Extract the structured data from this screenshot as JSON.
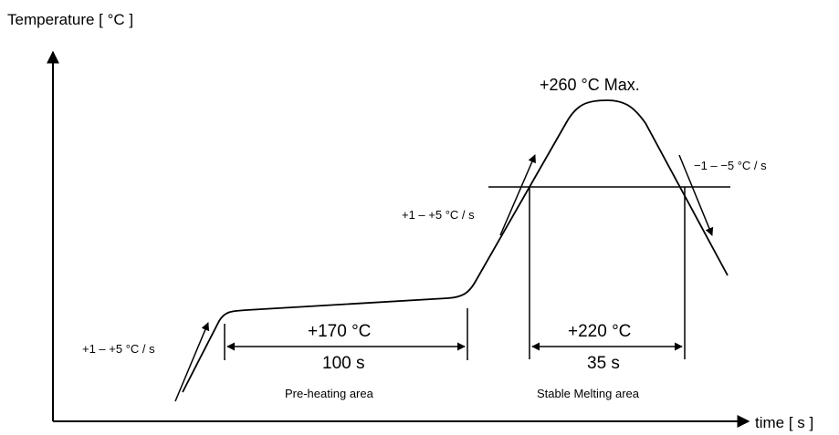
{
  "diagram": {
    "axes": {
      "y_title": "Temperature [ °C ]",
      "x_title": "time [ s ]"
    },
    "rates": {
      "initial_ramp": "+1 – +5 °C / s",
      "second_ramp": "+1 – +5 °C / s",
      "cooling": "−1 – −5 °C / s"
    },
    "peak_label": "+260 °C  Max.",
    "preheat": {
      "temperature": "+170 °C",
      "duration": "100 s",
      "area_label": "Pre-heating area"
    },
    "melting": {
      "temperature": "+220 °C",
      "duration": "35 s",
      "area_label": "Stable Melting area"
    },
    "colors": {
      "line": "#000000",
      "background": "#ffffff"
    }
  }
}
